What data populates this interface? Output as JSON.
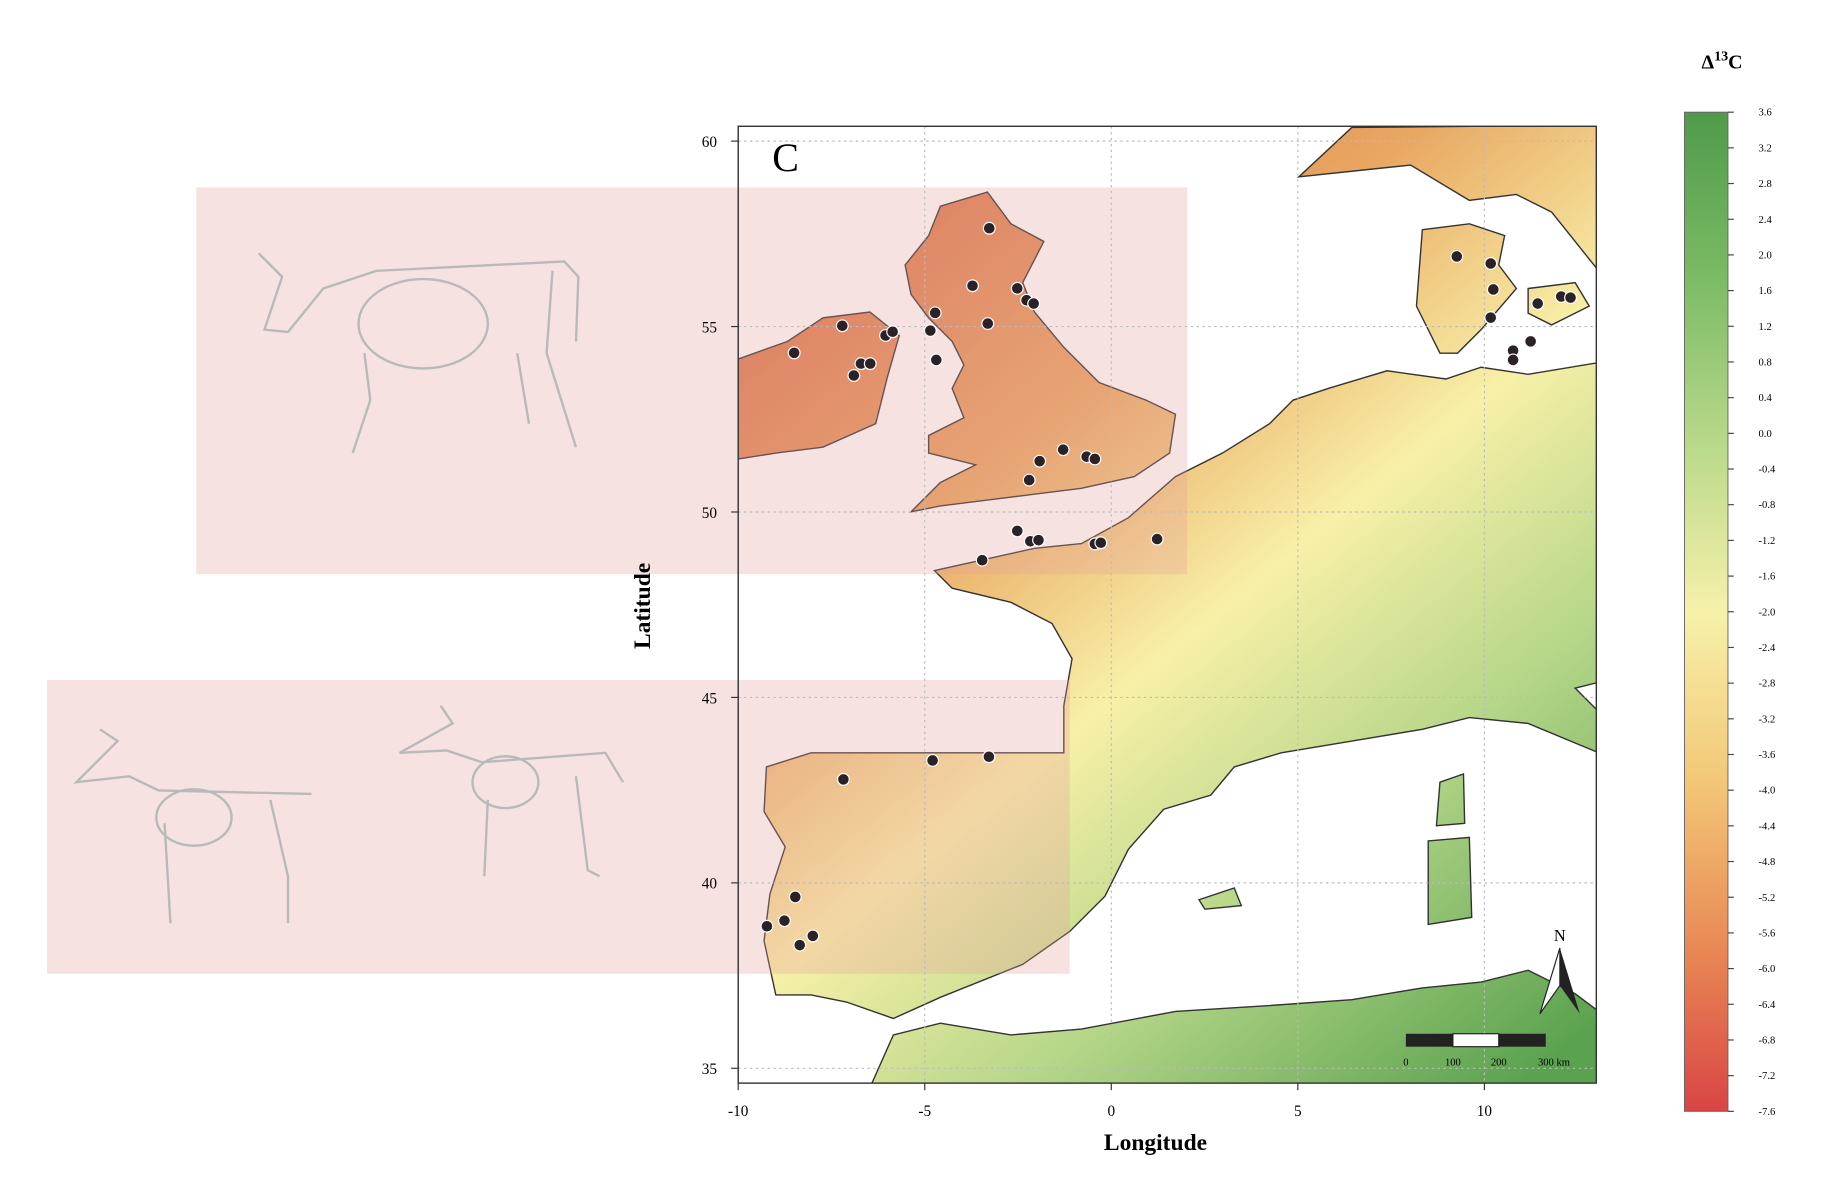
{
  "chart_data": {
    "type": "scatter",
    "panel_label": "C",
    "x_label": "Longitude",
    "y_label": "Latitude",
    "x": [
      -3.27,
      -3.72,
      -2.52,
      -2.27,
      -2.08,
      -3.31,
      -4.72,
      -4.85,
      -4.69,
      -7.21,
      -8.5,
      -6.05,
      -5.86,
      -6.71,
      -6.46,
      -6.9,
      -1.29,
      -1.92,
      -0.66,
      -0.44,
      -2.2,
      -2.52,
      -2.17,
      -1.95,
      -3.46,
      -0.44,
      -0.28,
      1.23,
      9.26,
      10.17,
      10.24,
      10.17,
      11.43,
      12.06,
      12.31,
      11.24,
      10.77,
      10.77,
      -3.28,
      -4.79,
      -7.18,
      -8.47,
      -8.76,
      -9.23,
      -8.0,
      -8.35
    ],
    "values": [
      57.65,
      56.1,
      56.03,
      55.71,
      55.62,
      55.08,
      55.37,
      54.89,
      54.1,
      55.02,
      54.29,
      54.76,
      54.86,
      54.0,
      54.0,
      53.68,
      51.68,
      51.37,
      51.49,
      51.43,
      50.86,
      49.49,
      49.21,
      49.24,
      48.7,
      49.14,
      49.17,
      49.27,
      56.89,
      56.7,
      56.0,
      55.24,
      55.62,
      55.81,
      55.78,
      54.6,
      54.35,
      54.1,
      43.4,
      43.3,
      42.79,
      39.62,
      38.98,
      38.83,
      38.57,
      38.32
    ],
    "color": "#2a2226",
    "xlim": [
      -10,
      13
    ],
    "ylim": [
      34.6,
      60.4
    ],
    "xticks": [
      -10,
      -5,
      0,
      5,
      10
    ],
    "yticks": [
      35,
      40,
      45,
      50,
      55,
      60
    ],
    "grid": true,
    "colorbar": {
      "title": {
        "symbol": "Δ",
        "superscript": "13",
        "letter": "C"
      },
      "lim": [
        -7.6,
        3.6
      ],
      "colors": [
        "#d94545",
        "#e98a55",
        "#f3c878",
        "#f7f1aa",
        "#b9d98a",
        "#7cbb66",
        "#4f9a4a"
      ],
      "ticks": [
        3.6,
        3.2,
        2.8,
        2.4,
        {
          "value": 2,
          "label": "2.0"
        },
        1.6,
        1.2,
        0.8,
        0.4,
        {
          "value": 0,
          "label": "0.0"
        },
        -0.4,
        -0.8,
        -1.2,
        -1.6,
        {
          "value": -2,
          "label": "-2.0"
        },
        -2.4,
        -2.8,
        -3.2,
        -3.6,
        {
          "value": -4,
          "label": "-4.0"
        },
        -4.4,
        -4.8,
        -5.2,
        -5.6,
        {
          "value": -6,
          "label": "-6.0"
        },
        -6.4,
        -6.8,
        -7.2,
        -7.6
      ]
    },
    "scale_bar": {
      "labels": [
        "0",
        "100",
        "200",
        "300 km"
      ]
    },
    "north_label": "N"
  }
}
